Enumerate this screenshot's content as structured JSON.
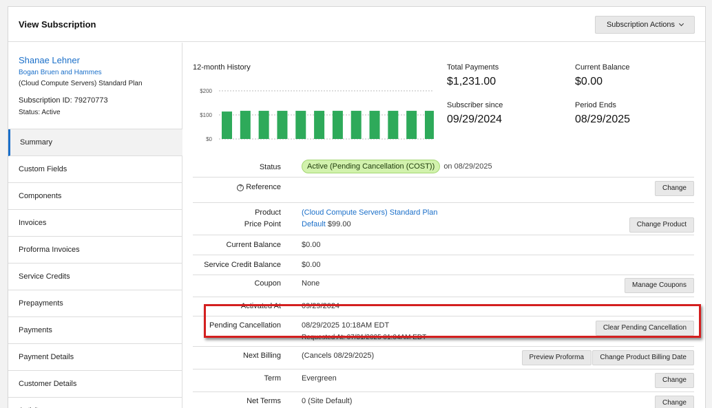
{
  "header": {
    "title": "View Subscription",
    "actions_label": "Subscription Actions"
  },
  "customer": {
    "name": "Shanae Lehner",
    "company": "Bogan Bruen and Hammes",
    "plan": "(Cloud Compute Servers) Standard Plan",
    "subscription_id": "Subscription ID: 79270773",
    "status": "Status: Active"
  },
  "nav": [
    {
      "label": "Summary"
    },
    {
      "label": "Custom Fields"
    },
    {
      "label": "Components"
    },
    {
      "label": "Invoices"
    },
    {
      "label": "Proforma Invoices"
    },
    {
      "label": "Service Credits"
    },
    {
      "label": "Prepayments"
    },
    {
      "label": "Payments"
    },
    {
      "label": "Payment Details"
    },
    {
      "label": "Customer Details"
    },
    {
      "label": "Activity"
    }
  ],
  "history": {
    "title": "12-month History",
    "chart_data": {
      "type": "bar",
      "values": [
        114,
        117,
        117,
        117,
        117,
        117,
        117,
        117,
        117,
        117,
        117,
        117
      ],
      "yticks": [
        "$200",
        "$100",
        "$0"
      ],
      "ylim": [
        0,
        200
      ],
      "bar_color": "#2eaa5a"
    }
  },
  "stats": {
    "total_payments_label": "Total Payments",
    "total_payments_value": "$1,231.00",
    "current_balance_label": "Current Balance",
    "current_balance_value": "$0.00",
    "subscriber_since_label": "Subscriber since",
    "subscriber_since_value": "09/29/2024",
    "period_ends_label": "Period Ends",
    "period_ends_value": "08/29/2025"
  },
  "details": {
    "status_label": "Status",
    "status_badge": "Active (Pending Cancellation (COST))",
    "status_date": "on 08/29/2025",
    "reference_label": "Reference",
    "reference_change": "Change",
    "product_label": "Product",
    "product_value": "(Cloud Compute Servers) Standard Plan",
    "price_point_label": "Price Point",
    "price_point_link": "Default",
    "price_point_price": "$99.00",
    "change_product": "Change Product",
    "current_balance_label": "Current Balance",
    "current_balance_value": "$0.00",
    "service_credit_label": "Service Credit Balance",
    "service_credit_value": "$0.00",
    "coupon_label": "Coupon",
    "coupon_value": "None",
    "manage_coupons": "Manage Coupons",
    "activated_label": "Activated At",
    "activated_value": "09/29/2024",
    "pending_label": "Pending Cancellation",
    "pending_value": "08/29/2025 10:18AM EDT",
    "pending_requested": "Requested At: 07/31/2025 01:04AM EDT",
    "clear_pending": "Clear Pending Cancellation",
    "next_billing_label": "Next Billing",
    "next_billing_value": "(Cancels 08/29/2025)",
    "preview_proforma": "Preview Proforma",
    "change_billing_date": "Change Product Billing Date",
    "term_label": "Term",
    "term_value": "Evergreen",
    "term_change": "Change",
    "net_terms_label": "Net Terms",
    "net_terms_value": "0 (Site Default)",
    "net_terms_change": "Change"
  },
  "colors": {
    "accent": "#1a6fc9",
    "highlight": "#d41f1f",
    "badge_bg": "#d2f2ad"
  }
}
